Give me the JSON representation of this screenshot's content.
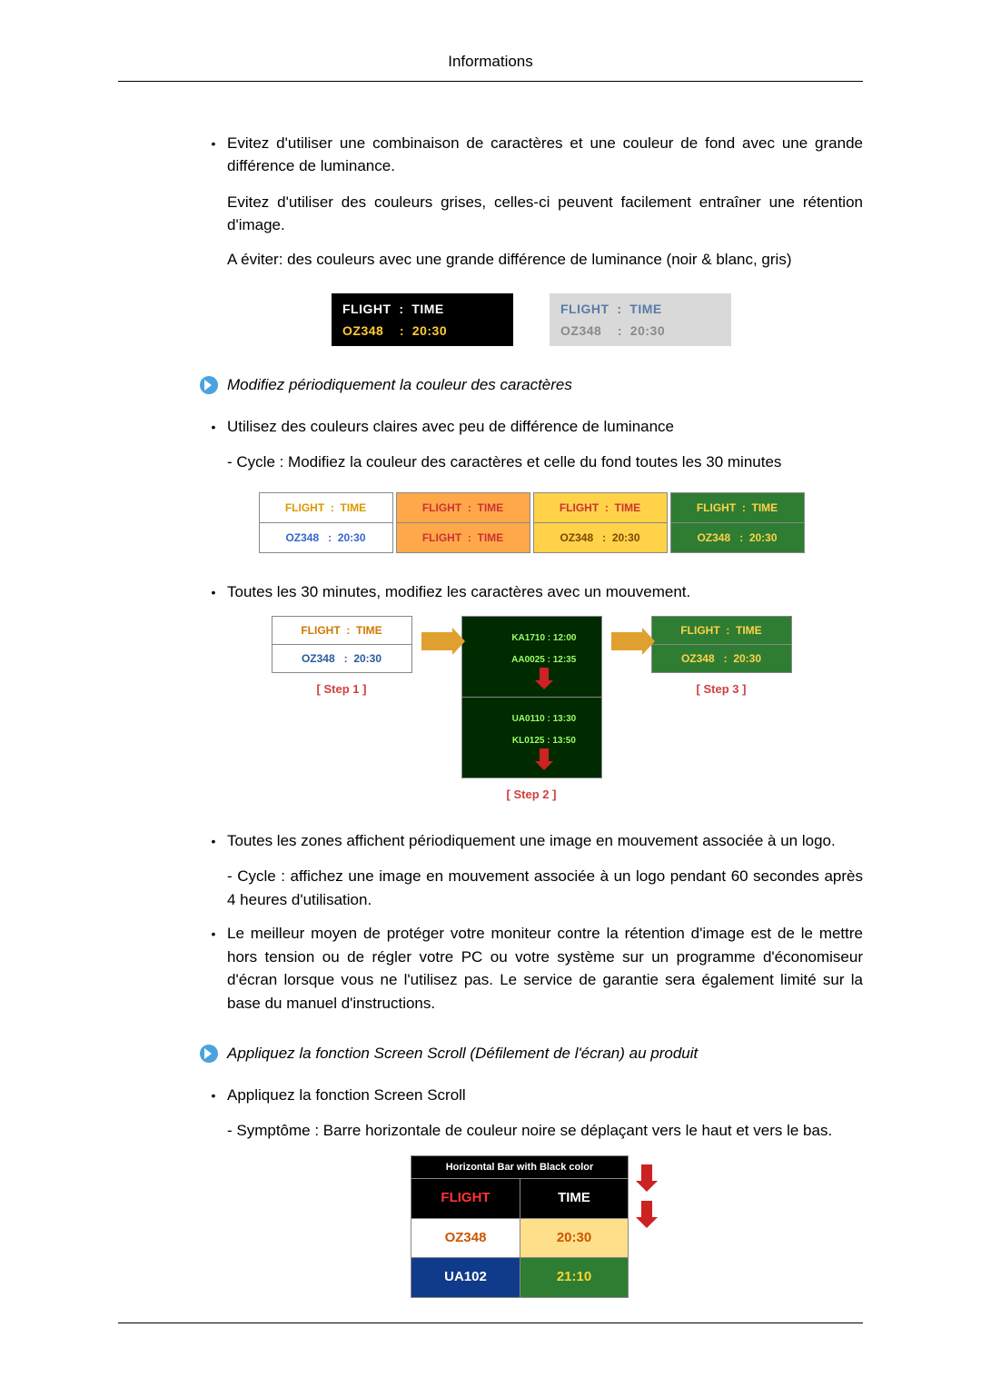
{
  "header": {
    "title": "Informations"
  },
  "para1": "Evitez d'utiliser une combinaison de caractères et une couleur de fond avec une grande différence de luminance.",
  "para1b": "Evitez d'utiliser des couleurs grises, celles-ci peuvent facilement entraîner une rétention d'image.",
  "para1c": "A éviter: des couleurs avec une grande différence de luminance (noir & blanc, gris)",
  "fig1": {
    "left": {
      "bg": "#000000",
      "row1_color": "#ffffff",
      "row1": "FLIGHT  :  TIME",
      "row2_color": "#ffcc33",
      "row2": "OZ348    :  20:30"
    },
    "right": {
      "bg": "#d9d9d9",
      "row1_color": "#5b7aa8",
      "row1": "FLIGHT  :  TIME",
      "row2_color": "#8a8a8a",
      "row2": "OZ348    :  20:30"
    }
  },
  "heading2": "Modifiez périodiquement la couleur des caractères",
  "para2a": "Utilisez des couleurs claires avec peu de différence de luminance",
  "para2b": "- Cycle : Modifiez la couleur des caractères et celle du fond toutes les 30 minutes",
  "fig2": [
    {
      "top_bg": "#ffffff",
      "top_color": "#d99a00",
      "top": "FLIGHT  :  TIME",
      "bot_bg": "#ffffff",
      "bot_color": "#3366cc",
      "bot": "OZ348   :  20:30"
    },
    {
      "top_bg": "#ffa84a",
      "top_color": "#cc3333",
      "top": "FLIGHT  :  TIME",
      "bot_bg": "#ffa84a",
      "bot_color": "#cc3333",
      "bot": "FLIGHT  :  TIME"
    },
    {
      "top_bg": "#ffd24a",
      "top_color": "#cc3333",
      "top": "FLIGHT  :  TIME",
      "bot_bg": "#ffd24a",
      "bot_color": "#7a4a00",
      "bot": "OZ348   :  20:30"
    },
    {
      "top_bg": "#2e7d32",
      "top_color": "#ffd24a",
      "top": "FLIGHT  :  TIME",
      "bot_bg": "#2e7d32",
      "bot_color": "#ffd24a",
      "bot": "OZ348   :  20:30"
    }
  ],
  "para3": "Toutes les 30 minutes, modifiez les caractères avec un mouvement.",
  "fig3": {
    "step1": {
      "r1_bg": "#ffffff",
      "r1_color": "#d07a00",
      "r1": "FLIGHT  :  TIME",
      "r2_bg": "#ffffff",
      "r2_color": "#2a5aa0",
      "r2": "OZ348   :  20:30",
      "label": "[ Step 1 ]"
    },
    "step2": {
      "bg": "#002a00",
      "line1": "KA1710 : 12:00",
      "line2": "AA0025 : 12:35",
      "line3": "UA0110 : 13:30",
      "line4": "KL0125 : 13:50",
      "text_color": "#9cff66",
      "label": "[ Step 2 ]"
    },
    "step3": {
      "r1_bg": "#2e7d32",
      "r1_color": "#ffd24a",
      "r1": "FLIGHT  :  TIME",
      "r2_bg": "#2e7d32",
      "r2_color": "#ffd24a",
      "r2": "OZ348   :  20:30",
      "label": "[ Step 3 ]"
    }
  },
  "para4a": "Toutes les zones affichent périodiquement une image en mouvement associée à un logo.",
  "para4b": "- Cycle : affichez une image en mouvement associée à un logo pendant 60 secondes après 4 heures d'utilisation.",
  "para5": "Le meilleur moyen de protéger votre moniteur contre la rétention d'image est de le mettre hors tension ou de régler votre PC ou votre système sur un programme d'économiseur d'écran lorsque vous ne l'utilisez pas. Le service de garantie sera également limité sur la base du manuel d'instructions.",
  "heading3": "Appliquez la fonction Screen Scroll (Défilement de l'écran) au produit",
  "para6a": "Appliquez la fonction Screen Scroll",
  "para6b": "- Symptôme : Barre horizontale de couleur noire se déplaçant vers le haut et vers le bas.",
  "fig4": {
    "title": "Horizontal Bar with Black color",
    "header_bg": "#000000",
    "rows": [
      {
        "c1": "FLIGHT",
        "c2": "TIME",
        "c1_bg": "#000000",
        "c1_color": "#ff3333",
        "c2_bg": "#000000",
        "c2_color": "#ffffff"
      },
      {
        "c1": "OZ348",
        "c2": "20:30",
        "c1_bg": "#ffffff",
        "c1_color": "#cc5500",
        "c2_bg": "#ffe08a",
        "c2_color": "#cc5500"
      },
      {
        "c1": "UA102",
        "c2": "21:10",
        "c1_bg": "#103a8a",
        "c1_color": "#ffffff",
        "c2_bg": "#2e7d32",
        "c2_color": "#ffd633"
      }
    ]
  }
}
